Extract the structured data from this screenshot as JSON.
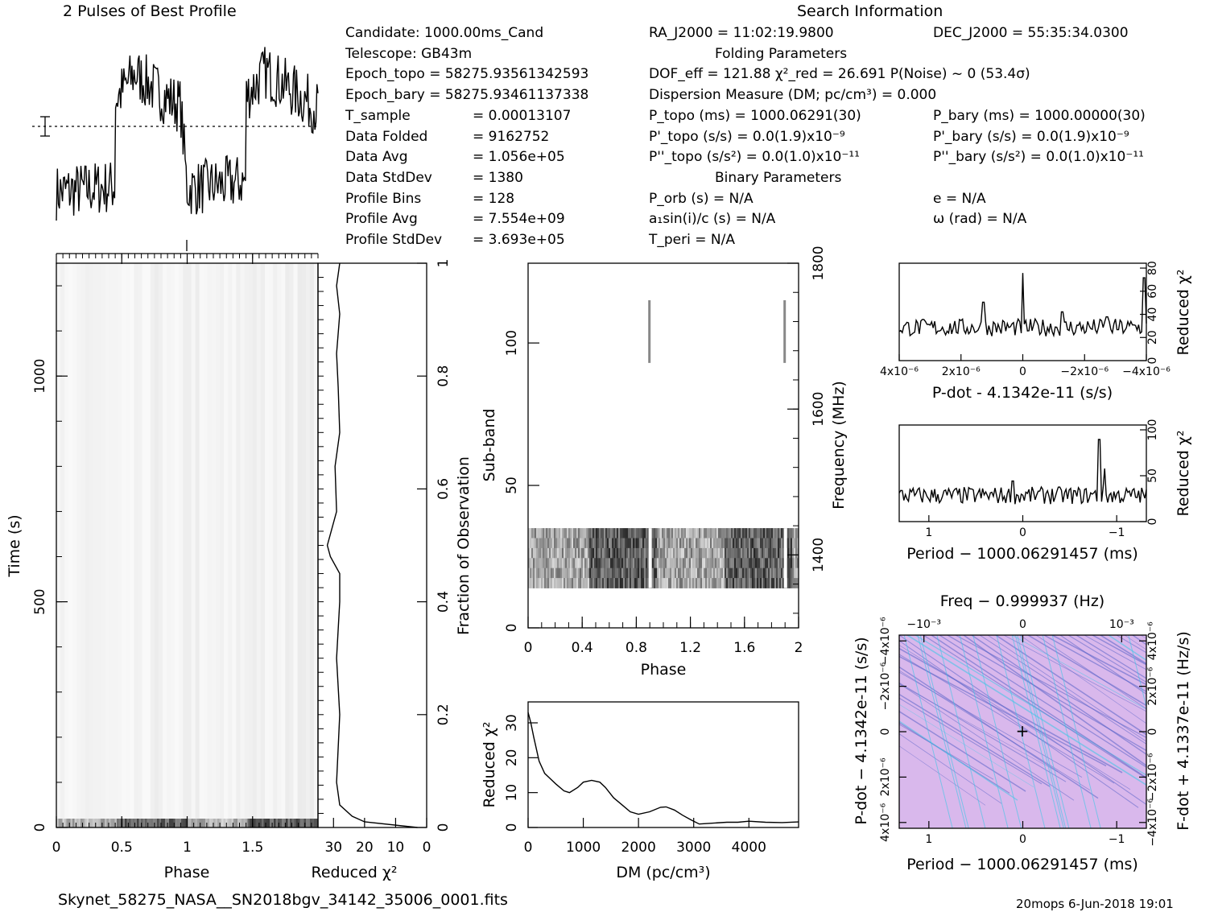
{
  "header": {
    "left_title": "2 Pulses of Best Profile",
    "right_title": "Search Information",
    "folding_title": "Folding Parameters",
    "binary_title": "Binary Parameters"
  },
  "info_left": [
    {
      "label": "Candidate:  1000.00ms_Cand",
      "value": ""
    },
    {
      "label": "Telescope:  GB43m",
      "value": ""
    },
    {
      "label": "Epoch_topo = 58275.93561342593",
      "value": ""
    },
    {
      "label": "Epoch_bary = 58275.93461137338",
      "value": ""
    },
    {
      "label": "T_sample",
      "value": "=  0.00013107"
    },
    {
      "label": "Data Folded",
      "value": "=  9162752"
    },
    {
      "label": "Data Avg",
      "value": "=  1.056e+05"
    },
    {
      "label": "Data StdDev",
      "value": "=  1380"
    },
    {
      "label": "Profile Bins",
      "value": "=  128"
    },
    {
      "label": "Profile Avg",
      "value": "=  7.554e+09"
    },
    {
      "label": "Profile StdDev",
      "value": "=  3.693e+05"
    }
  ],
  "info_mid": [
    "RA_J2000 = 11:02:19.9800",
    "DOF_eff = 121.88  χ²_red = 26.691  P(Noise) ~ 0   (53.4σ)",
    "Dispersion Measure (DM; pc/cm³) = 0.000",
    "P_topo (ms) =  1000.06291(30)",
    "P'_topo (s/s) = 0.0(1.9)x10⁻⁹",
    "P''_topo (s/s²) = 0.0(1.0)x10⁻¹¹",
    "P_orb (s) = N/A",
    "a₁sin(i)/c (s) = N/A",
    "T_peri = N/A"
  ],
  "info_right": [
    "DEC_J2000 = 55:35:34.0300",
    "P_bary (ms) =  1000.00000(30)",
    "P'_bary (s/s) = 0.0(1.9)x10⁻⁹",
    "P''_bary (s/s²) = 0.0(1.0)x10⁻¹¹",
    "e = N/A",
    "ω (rad) = N/A"
  ],
  "footer": {
    "filename": "Skynet_58275_NASA__SN2018bgv_34142_35006_0001.fits",
    "stamp": "20mops  6-Jun-2018 19:01"
  },
  "colors": {
    "ppdot_base": "#d9b8ec",
    "ppdot_line": "#5a64c8",
    "ppdot_accent": "#3cc8e6"
  },
  "chart_data": [
    {
      "type": "line",
      "name": "pulse-profile",
      "title": "2 Pulses of Best Profile",
      "xlim": [
        0,
        2
      ],
      "profile_shape": [
        {
          "phase": 0.0,
          "level": 0.18
        },
        {
          "phase": 0.45,
          "level": 0.22
        },
        {
          "phase": 0.45,
          "level": 0.75
        },
        {
          "phase": 0.6,
          "level": 0.92
        },
        {
          "phase": 0.82,
          "level": 0.78
        },
        {
          "phase": 0.95,
          "level": 0.72
        },
        {
          "phase": 1.0,
          "level": 0.2
        },
        {
          "phase": 1.45,
          "level": 0.25
        },
        {
          "phase": 1.45,
          "level": 0.78
        },
        {
          "phase": 1.6,
          "level": 0.93
        },
        {
          "phase": 2.0,
          "level": 0.7
        }
      ]
    },
    {
      "type": "heatmap",
      "name": "time-vs-phase",
      "xlabel": "Phase",
      "ylabel": "Time (s)",
      "xlim": [
        0,
        2
      ],
      "ylim": [
        0,
        1250
      ],
      "x_ticks": [
        "0",
        "0.5",
        "1",
        "1.5"
      ],
      "y_ticks": [
        "0",
        "500",
        "1000"
      ]
    },
    {
      "type": "line",
      "name": "time-reduced-chi2",
      "xlabel": "Reduced χ²",
      "ylabel": "Fraction of Observation",
      "xlim": [
        35,
        0
      ],
      "ylim": [
        0,
        1
      ],
      "x_ticks": [
        "30",
        "20",
        "10",
        "0"
      ],
      "y_ticks": [
        "0",
        "0.2",
        "0.4",
        "0.6",
        "0.8",
        "1"
      ],
      "points": [
        [
          3,
          0.0
        ],
        [
          20,
          0.01
        ],
        [
          24,
          0.02
        ],
        [
          28,
          0.04
        ],
        [
          29,
          0.08
        ],
        [
          28,
          0.2
        ],
        [
          29,
          0.3
        ],
        [
          28,
          0.4
        ],
        [
          28,
          0.45
        ],
        [
          31,
          0.48
        ],
        [
          32,
          0.5
        ],
        [
          29,
          0.56
        ],
        [
          29.5,
          0.64
        ],
        [
          28,
          0.7
        ],
        [
          28.5,
          0.78
        ],
        [
          29,
          0.84
        ],
        [
          28,
          0.91
        ],
        [
          29,
          0.96
        ],
        [
          28,
          1.0
        ]
      ]
    },
    {
      "type": "heatmap",
      "name": "subband-vs-phase",
      "xlabel": "Phase",
      "ylabel": "Sub-band",
      "y2label": "Frequency (MHz)",
      "xlim": [
        0,
        2
      ],
      "ylim": [
        0,
        128
      ],
      "x_ticks": [
        "0",
        "0.4",
        "0.8",
        "1.2",
        "1.6",
        "2"
      ],
      "y_ticks": [
        "0",
        "50",
        "100"
      ],
      "y2_ticks": [
        "1400",
        "1600",
        "1800"
      ]
    },
    {
      "type": "line",
      "name": "dm-reduced-chi2",
      "xlabel": "DM (pc/cm³)",
      "ylabel": "Reduced χ²",
      "xlim": [
        0,
        4900
      ],
      "ylim": [
        0,
        36
      ],
      "x_ticks": [
        "0",
        "1000",
        "2000",
        "3000",
        "4000"
      ],
      "y_ticks": [
        "0",
        "10",
        "20",
        "30"
      ],
      "points": [
        [
          0,
          33
        ],
        [
          50,
          30
        ],
        [
          100,
          26
        ],
        [
          200,
          19
        ],
        [
          300,
          15.5
        ],
        [
          400,
          14
        ],
        [
          500,
          12.5
        ],
        [
          650,
          10.5
        ],
        [
          750,
          10
        ],
        [
          900,
          11.5
        ],
        [
          1000,
          13
        ],
        [
          1150,
          13.5
        ],
        [
          1300,
          13
        ],
        [
          1400,
          11.5
        ],
        [
          1550,
          8.5
        ],
        [
          1700,
          6.5
        ],
        [
          1850,
          4.5
        ],
        [
          2000,
          3.8
        ],
        [
          2200,
          4.5
        ],
        [
          2400,
          5.8
        ],
        [
          2500,
          5.9
        ],
        [
          2650,
          5
        ],
        [
          2800,
          3.5
        ],
        [
          2950,
          2.2
        ],
        [
          3100,
          1
        ],
        [
          3300,
          1.2
        ],
        [
          3600,
          1.5
        ],
        [
          3800,
          1.5
        ],
        [
          4000,
          1.8
        ],
        [
          4300,
          1.5
        ],
        [
          4600,
          1.4
        ],
        [
          4900,
          1.6
        ]
      ]
    },
    {
      "type": "line",
      "name": "pdot-reduced-chi2",
      "xlabel": "P-dot - 4.1342e-11 (s/s)",
      "ylabel": "Reduced χ²",
      "x_ticks": [
        "4x10⁻⁶",
        "2x10⁻⁶",
        "0",
        "−2x10⁻⁶",
        "−4x10⁻⁶"
      ],
      "y_ticks": [
        "0",
        "20",
        "40",
        "60",
        "80"
      ]
    },
    {
      "type": "line",
      "name": "period-reduced-chi2",
      "xlabel": "Period − 1000.06291457 (ms)",
      "ylabel": "Reduced χ²",
      "x_ticks": [
        "1",
        "0",
        "−1"
      ],
      "y_ticks": [
        "0",
        "50",
        "100"
      ]
    },
    {
      "type": "heatmap",
      "name": "p-pdot-plane",
      "title": "Freq − 0.999937 (Hz)",
      "xlabel": "Period − 1000.06291457 (ms)",
      "ylabel": "P-dot − 4.1342e-11 (s/s)",
      "y2label": "F-dot + 4.1337e-11 (Hz/s)",
      "x_ticks": [
        "1",
        "0",
        "−1"
      ],
      "top_ticks": [
        "−10⁻³",
        "0",
        "10⁻³"
      ],
      "y_ticks": [
        "4x10⁻⁶",
        "2x10⁻⁶",
        "0",
        "−2x10⁻⁶",
        "−4x10⁻⁶"
      ],
      "y2_ticks": [
        "−4x10⁻⁶",
        "−2x10⁻⁶",
        "0",
        "2x10⁻⁶",
        "4x10⁻⁶"
      ]
    }
  ]
}
